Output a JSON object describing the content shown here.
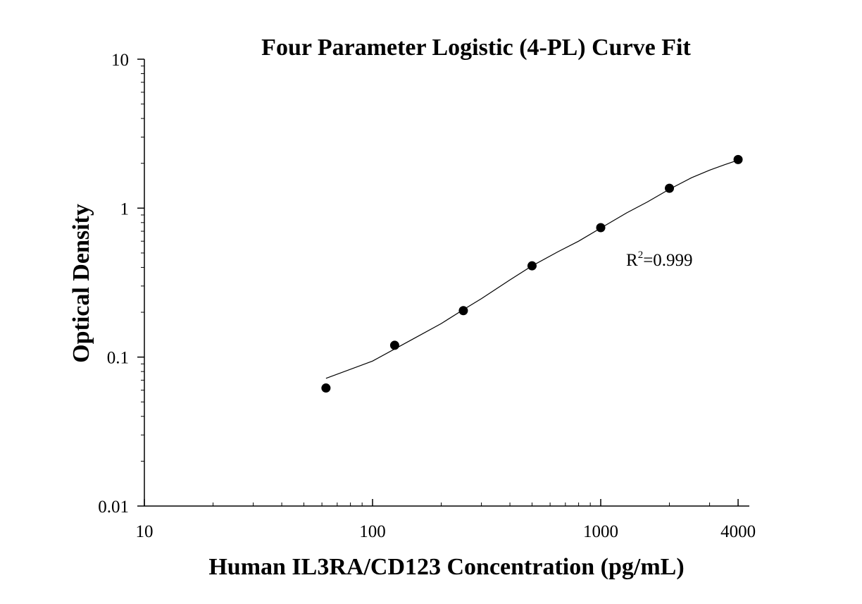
{
  "chart_data": {
    "type": "scatter",
    "title": "Four Parameter Logistic (4-PL) Curve Fit",
    "xlabel": "Human IL3RA/CD123 Concentration (pg/mL)",
    "ylabel": "Optical Density",
    "x_scale": "log",
    "y_scale": "log",
    "xlim": [
      10,
      4000
    ],
    "ylim": [
      0.01,
      10
    ],
    "x_ticks": [
      10,
      100,
      1000,
      4000
    ],
    "x_tick_labels": [
      "10",
      "100",
      "1000",
      "4000"
    ],
    "y_ticks": [
      0.01,
      0.1,
      1,
      10
    ],
    "y_tick_labels": [
      "0.01",
      "0.1",
      "1",
      "10"
    ],
    "grid": false,
    "points": {
      "x": [
        62.5,
        125,
        250,
        500,
        1000,
        2000,
        4000
      ],
      "y": [
        0.062,
        0.12,
        0.205,
        0.41,
        0.74,
        1.36,
        2.12
      ]
    },
    "fit_curve": {
      "x": [
        62.5,
        100,
        150,
        200,
        250,
        300,
        400,
        500,
        650,
        800,
        1000,
        1300,
        1600,
        2000,
        2500,
        3000,
        3500,
        4000
      ],
      "y": [
        0.072,
        0.094,
        0.132,
        0.168,
        0.208,
        0.247,
        0.33,
        0.41,
        0.51,
        0.6,
        0.735,
        0.93,
        1.1,
        1.34,
        1.6,
        1.8,
        1.96,
        2.1
      ]
    },
    "annotation": {
      "base": "R",
      "sup": "2",
      "rest": "=0.999"
    },
    "colors": {
      "points": "#000000",
      "curve": "#000000",
      "axes": "#000000"
    }
  }
}
